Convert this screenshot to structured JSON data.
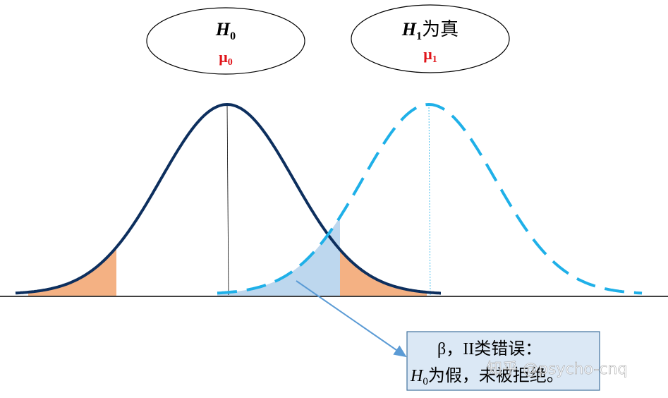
{
  "h0_bubble": {
    "symbol": "H",
    "subscript": "0",
    "mean_symbol": "μ",
    "mean_subscript": "0"
  },
  "h1_bubble": {
    "symbol": "H",
    "subscript": "1",
    "suffix": "为真",
    "mean_symbol": "μ",
    "mean_subscript": "1"
  },
  "callout": {
    "line1": "β，II类错误：",
    "line2_symbol": "H",
    "line2_subscript": "0",
    "line2_rest": "为假，未被拒绝。"
  },
  "watermark": "知乎 @psycho-cnq"
}
